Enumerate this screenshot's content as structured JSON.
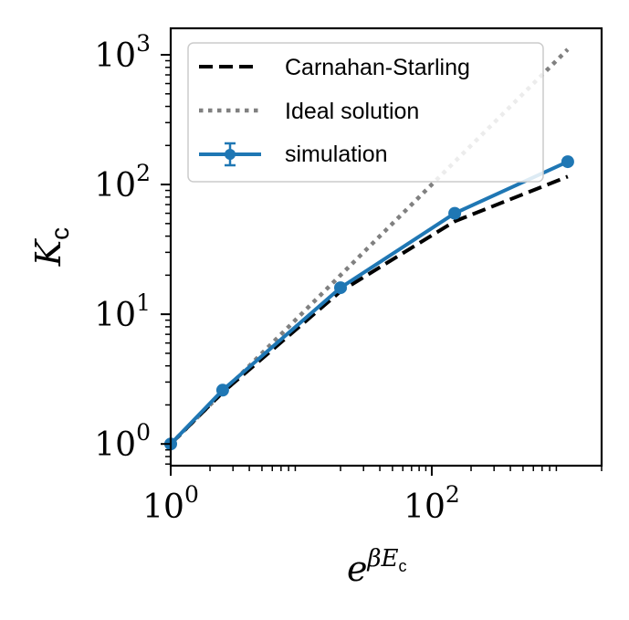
{
  "chart_data": {
    "type": "line",
    "xscale": "log",
    "yscale": "log",
    "xlabel": {
      "base": "e",
      "exp_greek": "β",
      "exp_var": "E",
      "exp_sub": "c"
    },
    "ylabel": {
      "main": "K",
      "sub": "c"
    },
    "xlim": [
      1,
      2000
    ],
    "ylim": [
      0.68,
      1600
    ],
    "xticks": [
      {
        "value": 1,
        "base": "10",
        "exp": "0"
      },
      {
        "value": 100,
        "base": "10",
        "exp": "2"
      }
    ],
    "yticks": [
      {
        "value": 1,
        "base": "10",
        "exp": "0"
      },
      {
        "value": 10,
        "base": "10",
        "exp": "1"
      },
      {
        "value": 100,
        "base": "10",
        "exp": "2"
      },
      {
        "value": 1000,
        "base": "10",
        "exp": "3"
      }
    ],
    "legend_position": "top-left",
    "grid": false,
    "series": [
      {
        "name": "Carnahan-Starling",
        "style": "dashed",
        "color": "#000000",
        "x": [
          1,
          2.5,
          20,
          150,
          1100
        ],
        "y": [
          1,
          2.5,
          15,
          52,
          115
        ]
      },
      {
        "name": "Ideal solution",
        "style": "dotted",
        "color": "#808080",
        "x": [
          1,
          1100
        ],
        "y": [
          1,
          1100
        ]
      },
      {
        "name": "simulation",
        "style": "solid-markers-errorbars",
        "color": "#1f77b4",
        "x": [
          1,
          2.5,
          20,
          150,
          1100
        ],
        "y": [
          1,
          2.6,
          16,
          60,
          150
        ]
      }
    ]
  }
}
